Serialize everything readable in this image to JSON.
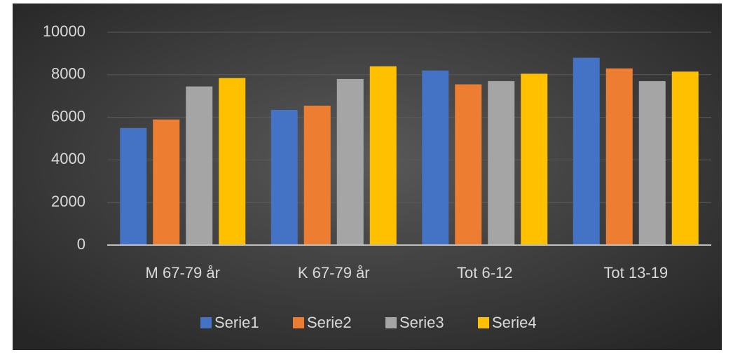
{
  "chart_data": {
    "type": "bar",
    "categories": [
      "M 67-79 år",
      "K 67-79 år",
      "Tot 6-12",
      "Tot 13-19"
    ],
    "series": [
      {
        "name": "Serie1",
        "color": "#4472c4",
        "values": [
          5500,
          6350,
          8200,
          8800
        ]
      },
      {
        "name": "Serie2",
        "color": "#ed7d31",
        "values": [
          5900,
          6550,
          7550,
          8300
        ]
      },
      {
        "name": "Serie3",
        "color": "#a5a5a5",
        "values": [
          7450,
          7800,
          7700,
          7700
        ]
      },
      {
        "name": "Serie4",
        "color": "#ffc000",
        "values": [
          7850,
          8400,
          8050,
          8150
        ]
      }
    ],
    "ylim": [
      0,
      10000
    ],
    "yticks": [
      0,
      2000,
      4000,
      6000,
      8000,
      10000
    ],
    "grid": true,
    "legend": "bottom"
  }
}
